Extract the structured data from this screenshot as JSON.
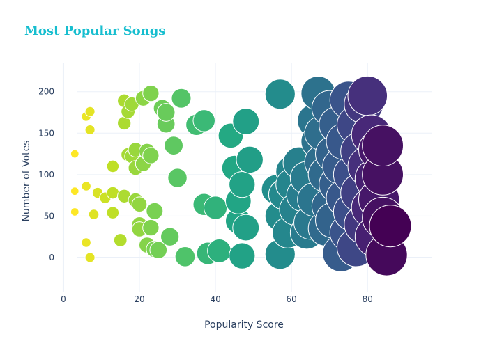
{
  "chart_data": {
    "type": "scatter",
    "title": "Most Popular Songs",
    "xlabel": "Popularity Score",
    "ylabel": "Number of Votes",
    "xlim": [
      -2,
      97
    ],
    "ylim": [
      -42,
      235
    ],
    "xticks": [
      0,
      20,
      40,
      60,
      80
    ],
    "yticks": [
      0,
      50,
      100,
      150,
      200
    ],
    "grid": true,
    "colorscale": "Viridis",
    "marker_size_encodes": "Popularity Score",
    "points": [
      {
        "x": 3,
        "y": 125
      },
      {
        "x": 3,
        "y": 80
      },
      {
        "x": 3,
        "y": 55
      },
      {
        "x": 6,
        "y": 170
      },
      {
        "x": 7,
        "y": 176
      },
      {
        "x": 7,
        "y": 154
      },
      {
        "x": 6,
        "y": 86
      },
      {
        "x": 6,
        "y": 18
      },
      {
        "x": 7,
        "y": 0
      },
      {
        "x": 8,
        "y": 52
      },
      {
        "x": 9,
        "y": 78
      },
      {
        "x": 11,
        "y": 72
      },
      {
        "x": 13,
        "y": 110
      },
      {
        "x": 13,
        "y": 78
      },
      {
        "x": 13,
        "y": 54
      },
      {
        "x": 15,
        "y": 21
      },
      {
        "x": 16,
        "y": 189
      },
      {
        "x": 16,
        "y": 162
      },
      {
        "x": 17,
        "y": 176
      },
      {
        "x": 17,
        "y": 124
      },
      {
        "x": 16,
        "y": 74
      },
      {
        "x": 18,
        "y": 185
      },
      {
        "x": 18,
        "y": 122
      },
      {
        "x": 19,
        "y": 108
      },
      {
        "x": 19,
        "y": 69
      },
      {
        "x": 19,
        "y": 130
      },
      {
        "x": 20,
        "y": 64
      },
      {
        "x": 20,
        "y": 40
      },
      {
        "x": 20,
        "y": 34
      },
      {
        "x": 21,
        "y": 192
      },
      {
        "x": 21,
        "y": 113
      },
      {
        "x": 22,
        "y": 128
      },
      {
        "x": 22,
        "y": 15
      },
      {
        "x": 23,
        "y": 198
      },
      {
        "x": 23,
        "y": 36
      },
      {
        "x": 23,
        "y": 123
      },
      {
        "x": 24,
        "y": 56
      },
      {
        "x": 24,
        "y": 10
      },
      {
        "x": 25,
        "y": 9
      },
      {
        "x": 26,
        "y": 180
      },
      {
        "x": 27,
        "y": 161
      },
      {
        "x": 27,
        "y": 175
      },
      {
        "x": 28,
        "y": 25
      },
      {
        "x": 29,
        "y": 135
      },
      {
        "x": 30,
        "y": 96
      },
      {
        "x": 31,
        "y": 192
      },
      {
        "x": 32,
        "y": 1
      },
      {
        "x": 35,
        "y": 160
      },
      {
        "x": 37,
        "y": 165
      },
      {
        "x": 37,
        "y": 64
      },
      {
        "x": 38,
        "y": 5
      },
      {
        "x": 40,
        "y": 60
      },
      {
        "x": 41,
        "y": 8
      },
      {
        "x": 44,
        "y": 147
      },
      {
        "x": 45,
        "y": 108
      },
      {
        "x": 46,
        "y": 44
      },
      {
        "x": 46,
        "y": 68
      },
      {
        "x": 47,
        "y": 2
      },
      {
        "x": 47,
        "y": 88
      },
      {
        "x": 48,
        "y": 164
      },
      {
        "x": 48,
        "y": 36
      },
      {
        "x": 49,
        "y": 118
      },
      {
        "x": 56,
        "y": 82
      },
      {
        "x": 57,
        "y": 197
      },
      {
        "x": 57,
        "y": 4
      },
      {
        "x": 57,
        "y": 50
      },
      {
        "x": 58,
        "y": 76
      },
      {
        "x": 59,
        "y": 30
      },
      {
        "x": 60,
        "y": 104
      },
      {
        "x": 60,
        "y": 88
      },
      {
        "x": 61,
        "y": 58
      },
      {
        "x": 62,
        "y": 114
      },
      {
        "x": 63,
        "y": 75
      },
      {
        "x": 64,
        "y": 96
      },
      {
        "x": 64,
        "y": 30
      },
      {
        "x": 65,
        "y": 42
      },
      {
        "x": 66,
        "y": 165
      },
      {
        "x": 66,
        "y": 70
      },
      {
        "x": 67,
        "y": 198
      },
      {
        "x": 67,
        "y": 140
      },
      {
        "x": 68,
        "y": 115
      },
      {
        "x": 68,
        "y": 150
      },
      {
        "x": 69,
        "y": 100
      },
      {
        "x": 69,
        "y": 35
      },
      {
        "x": 70,
        "y": 180
      },
      {
        "x": 70,
        "y": 62
      },
      {
        "x": 71,
        "y": 125
      },
      {
        "x": 71,
        "y": 45
      },
      {
        "x": 72,
        "y": 88
      },
      {
        "x": 72,
        "y": 160
      },
      {
        "x": 73,
        "y": 5
      },
      {
        "x": 73,
        "y": 110
      },
      {
        "x": 74,
        "y": 140
      },
      {
        "x": 74,
        "y": 72
      },
      {
        "x": 75,
        "y": 190
      },
      {
        "x": 75,
        "y": 30
      },
      {
        "x": 76,
        "y": 100
      },
      {
        "x": 76,
        "y": 55
      },
      {
        "x": 77,
        "y": 160
      },
      {
        "x": 77,
        "y": 12
      },
      {
        "x": 78,
        "y": 128
      },
      {
        "x": 78,
        "y": 78
      },
      {
        "x": 79,
        "y": 185
      },
      {
        "x": 79,
        "y": 40
      },
      {
        "x": 80,
        "y": 195
      },
      {
        "x": 80,
        "y": 110
      },
      {
        "x": 81,
        "y": 148
      },
      {
        "x": 81,
        "y": 60
      },
      {
        "x": 82,
        "y": 95
      },
      {
        "x": 82,
        "y": 25
      },
      {
        "x": 83,
        "y": 130
      },
      {
        "x": 83,
        "y": 70
      },
      {
        "x": 84,
        "y": 100
      },
      {
        "x": 84,
        "y": 48
      },
      {
        "x": 85,
        "y": 3
      },
      {
        "x": 86,
        "y": 38
      },
      {
        "x": 84,
        "y": 135
      }
    ]
  }
}
